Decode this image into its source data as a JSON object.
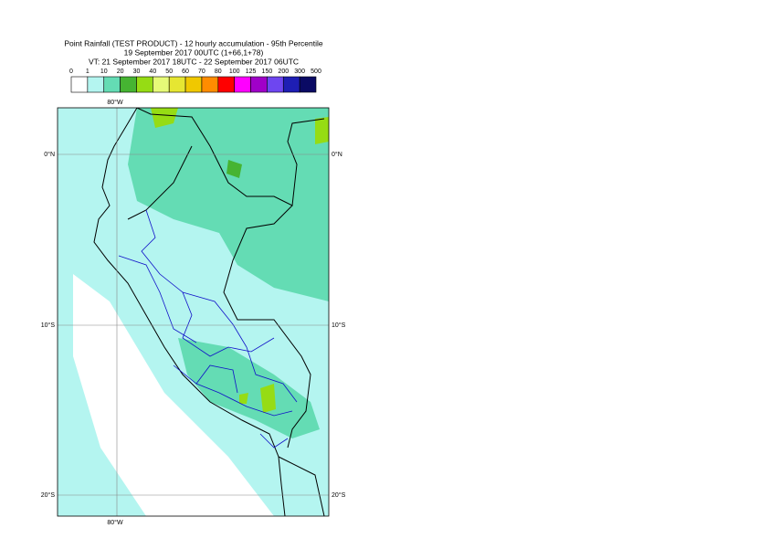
{
  "header": {
    "lines": [
      "Point Rainfall (TEST PRODUCT) - 12 hourly accumulation - 95th Percentile",
      "19 September 2017 00UTC (1+66,1+78)",
      "VT: 21 September 2017 18UTC - 22 September 2017 06UTC"
    ]
  },
  "legend": {
    "labels": [
      "0",
      "1",
      "10",
      "20",
      "30",
      "40",
      "50",
      "60",
      "70",
      "80",
      "100",
      "125",
      "150",
      "200",
      "300",
      "500"
    ],
    "colors": [
      "#ffffff",
      "#b4f5f0",
      "#64dcb4",
      "#46b432",
      "#96dc14",
      "#e6fa78",
      "#e6e632",
      "#f0c800",
      "#ff8c00",
      "#ff0000",
      "#ff00ff",
      "#a000c8",
      "#6e46f0",
      "#1e1eb4",
      "#0a0a64"
    ]
  },
  "map": {
    "lon_labels": [
      "80°W",
      "80°W"
    ],
    "lat_labels_left": [
      "0°N",
      "10°S",
      "20°S"
    ],
    "lat_labels_right": [
      "0°N",
      "10°S",
      "20°S"
    ]
  }
}
